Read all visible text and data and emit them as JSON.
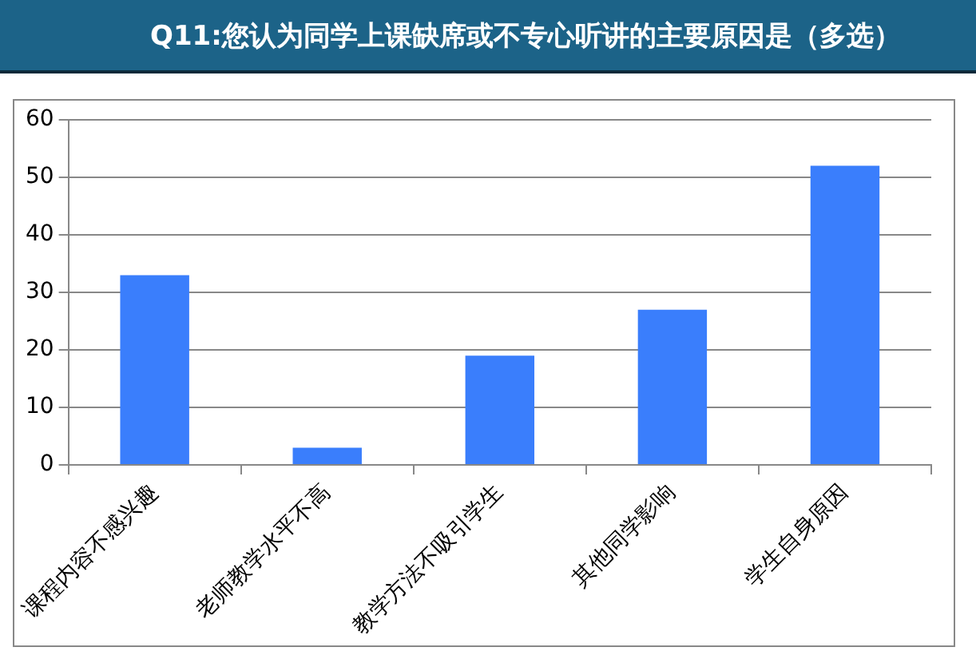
{
  "chart_data": {
    "type": "bar",
    "title": "Q11:您认为同学上课缺席或不专心听讲的主要原因是（多选）",
    "categories": [
      "课程内容不感兴趣",
      "老师教学水平不高",
      "教学方法不吸引学生",
      "其他同学影响",
      "学生自身原因"
    ],
    "values": [
      33,
      3,
      19,
      27,
      52
    ],
    "color": "#3a7efc",
    "ylim": [
      0,
      60
    ],
    "yticks": [
      0,
      10,
      20,
      30,
      40,
      50,
      60
    ],
    "grid": "y",
    "legend": false
  }
}
